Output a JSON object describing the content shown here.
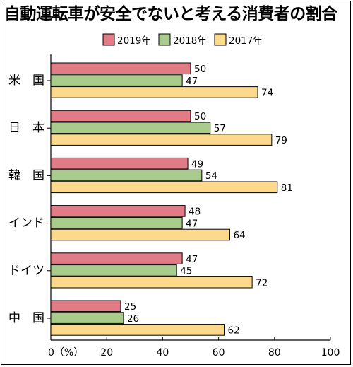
{
  "title": "自動運転車が安全でないと考える消費者の割合",
  "chart_data": {
    "type": "bar",
    "orientation": "horizontal",
    "title": "自動運転車が安全でないと考える消費者の割合",
    "categories": [
      "米　国",
      "日　本",
      "韓　国",
      "インド",
      "ドイツ",
      "中　国"
    ],
    "series": [
      {
        "name": "2019年",
        "color": "#e17b85",
        "values": [
          50,
          50,
          49,
          48,
          47,
          25
        ]
      },
      {
        "name": "2018年",
        "color": "#a9cc8c",
        "values": [
          47,
          57,
          54,
          47,
          45,
          26
        ]
      },
      {
        "name": "2017年",
        "color": "#fcd98b",
        "values": [
          74,
          79,
          81,
          64,
          72,
          62
        ]
      }
    ],
    "xlim": [
      0,
      100
    ],
    "xticks": [
      0,
      20,
      40,
      60,
      80,
      100
    ],
    "xtick_labels": [
      "0（%）",
      "20",
      "40",
      "60",
      "80",
      "100"
    ],
    "legend_position": "top",
    "grid": false
  }
}
